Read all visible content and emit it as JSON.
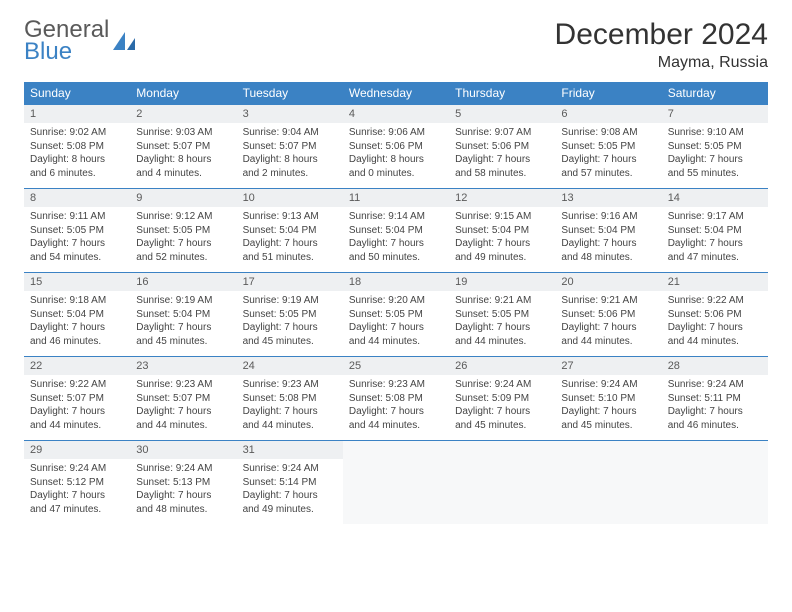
{
  "brand": {
    "word1": "General",
    "word2": "Blue",
    "color_primary": "#3b82c4",
    "color_text": "#5a5a5a"
  },
  "title": "December 2024",
  "location": "Mayma, Russia",
  "weekday_header_bg": "#3b82c4",
  "weekday_header_fg": "#ffffff",
  "daynum_bg": "#eef0f2",
  "weekdays": [
    "Sunday",
    "Monday",
    "Tuesday",
    "Wednesday",
    "Thursday",
    "Friday",
    "Saturday"
  ],
  "weeks": [
    [
      {
        "n": "1",
        "sr": "9:02 AM",
        "ss": "5:08 PM",
        "dl": "8 hours and 6 minutes."
      },
      {
        "n": "2",
        "sr": "9:03 AM",
        "ss": "5:07 PM",
        "dl": "8 hours and 4 minutes."
      },
      {
        "n": "3",
        "sr": "9:04 AM",
        "ss": "5:07 PM",
        "dl": "8 hours and 2 minutes."
      },
      {
        "n": "4",
        "sr": "9:06 AM",
        "ss": "5:06 PM",
        "dl": "8 hours and 0 minutes."
      },
      {
        "n": "5",
        "sr": "9:07 AM",
        "ss": "5:06 PM",
        "dl": "7 hours and 58 minutes."
      },
      {
        "n": "6",
        "sr": "9:08 AM",
        "ss": "5:05 PM",
        "dl": "7 hours and 57 minutes."
      },
      {
        "n": "7",
        "sr": "9:10 AM",
        "ss": "5:05 PM",
        "dl": "7 hours and 55 minutes."
      }
    ],
    [
      {
        "n": "8",
        "sr": "9:11 AM",
        "ss": "5:05 PM",
        "dl": "7 hours and 54 minutes."
      },
      {
        "n": "9",
        "sr": "9:12 AM",
        "ss": "5:05 PM",
        "dl": "7 hours and 52 minutes."
      },
      {
        "n": "10",
        "sr": "9:13 AM",
        "ss": "5:04 PM",
        "dl": "7 hours and 51 minutes."
      },
      {
        "n": "11",
        "sr": "9:14 AM",
        "ss": "5:04 PM",
        "dl": "7 hours and 50 minutes."
      },
      {
        "n": "12",
        "sr": "9:15 AM",
        "ss": "5:04 PM",
        "dl": "7 hours and 49 minutes."
      },
      {
        "n": "13",
        "sr": "9:16 AM",
        "ss": "5:04 PM",
        "dl": "7 hours and 48 minutes."
      },
      {
        "n": "14",
        "sr": "9:17 AM",
        "ss": "5:04 PM",
        "dl": "7 hours and 47 minutes."
      }
    ],
    [
      {
        "n": "15",
        "sr": "9:18 AM",
        "ss": "5:04 PM",
        "dl": "7 hours and 46 minutes."
      },
      {
        "n": "16",
        "sr": "9:19 AM",
        "ss": "5:04 PM",
        "dl": "7 hours and 45 minutes."
      },
      {
        "n": "17",
        "sr": "9:19 AM",
        "ss": "5:05 PM",
        "dl": "7 hours and 45 minutes."
      },
      {
        "n": "18",
        "sr": "9:20 AM",
        "ss": "5:05 PM",
        "dl": "7 hours and 44 minutes."
      },
      {
        "n": "19",
        "sr": "9:21 AM",
        "ss": "5:05 PM",
        "dl": "7 hours and 44 minutes."
      },
      {
        "n": "20",
        "sr": "9:21 AM",
        "ss": "5:06 PM",
        "dl": "7 hours and 44 minutes."
      },
      {
        "n": "21",
        "sr": "9:22 AM",
        "ss": "5:06 PM",
        "dl": "7 hours and 44 minutes."
      }
    ],
    [
      {
        "n": "22",
        "sr": "9:22 AM",
        "ss": "5:07 PM",
        "dl": "7 hours and 44 minutes."
      },
      {
        "n": "23",
        "sr": "9:23 AM",
        "ss": "5:07 PM",
        "dl": "7 hours and 44 minutes."
      },
      {
        "n": "24",
        "sr": "9:23 AM",
        "ss": "5:08 PM",
        "dl": "7 hours and 44 minutes."
      },
      {
        "n": "25",
        "sr": "9:23 AM",
        "ss": "5:08 PM",
        "dl": "7 hours and 44 minutes."
      },
      {
        "n": "26",
        "sr": "9:24 AM",
        "ss": "5:09 PM",
        "dl": "7 hours and 45 minutes."
      },
      {
        "n": "27",
        "sr": "9:24 AM",
        "ss": "5:10 PM",
        "dl": "7 hours and 45 minutes."
      },
      {
        "n": "28",
        "sr": "9:24 AM",
        "ss": "5:11 PM",
        "dl": "7 hours and 46 minutes."
      }
    ],
    [
      {
        "n": "29",
        "sr": "9:24 AM",
        "ss": "5:12 PM",
        "dl": "7 hours and 47 minutes."
      },
      {
        "n": "30",
        "sr": "9:24 AM",
        "ss": "5:13 PM",
        "dl": "7 hours and 48 minutes."
      },
      {
        "n": "31",
        "sr": "9:24 AM",
        "ss": "5:14 PM",
        "dl": "7 hours and 49 minutes."
      },
      null,
      null,
      null,
      null
    ]
  ],
  "labels": {
    "sunrise": "Sunrise:",
    "sunset": "Sunset:",
    "daylight": "Daylight:"
  }
}
